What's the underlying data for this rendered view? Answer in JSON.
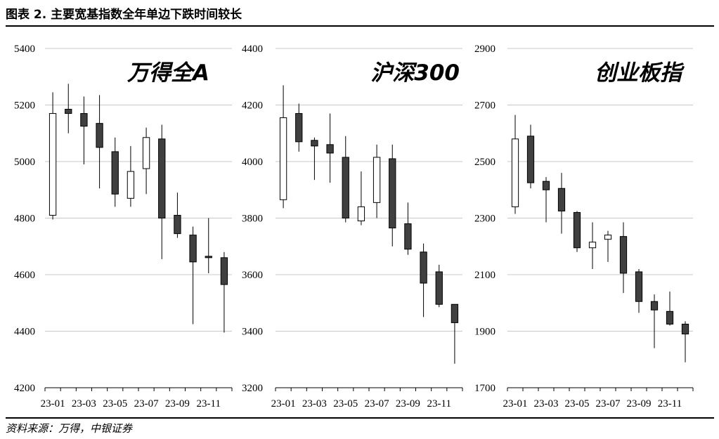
{
  "figure": {
    "title": "图表 2. 主要宽基指数全年单边下跌时间较长",
    "source": "资料来源：万得，中银证券"
  },
  "chart_data": [
    {
      "type": "candlestick",
      "title": "万得全A",
      "ylim": [
        4200,
        5400
      ],
      "yticks": [
        4200,
        4400,
        4600,
        4800,
        5000,
        5200,
        5400
      ],
      "xtick_labels": [
        "23-01",
        "23-03",
        "23-05",
        "23-07",
        "23-09",
        "23-11"
      ],
      "grid": true,
      "up_color": "#ffffff",
      "down_color": "#404040",
      "candles": [
        {
          "month": "23-01",
          "open": 4810,
          "high": 5245,
          "low": 4795,
          "close": 5170
        },
        {
          "month": "23-02",
          "open": 5185,
          "high": 5275,
          "low": 5100,
          "close": 5170
        },
        {
          "month": "23-03",
          "open": 5170,
          "high": 5230,
          "low": 4990,
          "close": 5125
        },
        {
          "month": "23-04",
          "open": 5135,
          "high": 5235,
          "low": 4905,
          "close": 5050
        },
        {
          "month": "23-05",
          "open": 5035,
          "high": 5085,
          "low": 4840,
          "close": 4885
        },
        {
          "month": "23-06",
          "open": 4870,
          "high": 5055,
          "low": 4840,
          "close": 4965
        },
        {
          "month": "23-07",
          "open": 4975,
          "high": 5120,
          "low": 4885,
          "close": 5085
        },
        {
          "month": "23-08",
          "open": 5080,
          "high": 5130,
          "low": 4655,
          "close": 4800
        },
        {
          "month": "23-09",
          "open": 4810,
          "high": 4890,
          "low": 4730,
          "close": 4745
        },
        {
          "month": "23-10",
          "open": 4740,
          "high": 4770,
          "low": 4425,
          "close": 4645
        },
        {
          "month": "23-11",
          "open": 4665,
          "high": 4800,
          "low": 4605,
          "close": 4660
        },
        {
          "month": "23-12",
          "open": 4660,
          "high": 4680,
          "low": 4395,
          "close": 4565
        }
      ]
    },
    {
      "type": "candlestick",
      "title": "沪深300",
      "ylim": [
        3200,
        4400
      ],
      "yticks": [
        3200,
        3400,
        3600,
        3800,
        4000,
        4200,
        4400
      ],
      "xtick_labels": [
        "23-01",
        "23-03",
        "23-05",
        "23-07",
        "23-09",
        "23-11"
      ],
      "grid": true,
      "up_color": "#ffffff",
      "down_color": "#404040",
      "candles": [
        {
          "month": "23-01",
          "open": 3865,
          "high": 4270,
          "low": 3835,
          "close": 4155
        },
        {
          "month": "23-02",
          "open": 4170,
          "high": 4205,
          "low": 4035,
          "close": 4070
        },
        {
          "month": "23-03",
          "open": 4075,
          "high": 4085,
          "low": 3935,
          "close": 4055
        },
        {
          "month": "23-04",
          "open": 4060,
          "high": 4170,
          "low": 3925,
          "close": 4030
        },
        {
          "month": "23-05",
          "open": 4015,
          "high": 4090,
          "low": 3785,
          "close": 3800
        },
        {
          "month": "23-06",
          "open": 3790,
          "high": 3965,
          "low": 3775,
          "close": 3840
        },
        {
          "month": "23-07",
          "open": 3855,
          "high": 4060,
          "low": 3800,
          "close": 4015
        },
        {
          "month": "23-08",
          "open": 4010,
          "high": 4060,
          "low": 3700,
          "close": 3765
        },
        {
          "month": "23-09",
          "open": 3780,
          "high": 3855,
          "low": 3670,
          "close": 3690
        },
        {
          "month": "23-10",
          "open": 3680,
          "high": 3710,
          "low": 3450,
          "close": 3570
        },
        {
          "month": "23-11",
          "open": 3610,
          "high": 3635,
          "low": 3485,
          "close": 3495
        },
        {
          "month": "23-12",
          "open": 3495,
          "high": 3495,
          "low": 3285,
          "close": 3430
        }
      ]
    },
    {
      "type": "candlestick",
      "title": "创业板指",
      "ylim": [
        1700,
        2900
      ],
      "yticks": [
        1700,
        1900,
        2100,
        2300,
        2500,
        2700,
        2900
      ],
      "xtick_labels": [
        "23-01",
        "23-03",
        "23-05",
        "23-07",
        "23-09",
        "23-11"
      ],
      "grid": true,
      "up_color": "#ffffff",
      "down_color": "#404040",
      "candles": [
        {
          "month": "23-01",
          "open": 2340,
          "high": 2665,
          "low": 2315,
          "close": 2580
        },
        {
          "month": "23-02",
          "open": 2590,
          "high": 2630,
          "low": 2405,
          "close": 2425
        },
        {
          "month": "23-03",
          "open": 2430,
          "high": 2445,
          "low": 2285,
          "close": 2400
        },
        {
          "month": "23-04",
          "open": 2405,
          "high": 2460,
          "low": 2245,
          "close": 2325
        },
        {
          "month": "23-05",
          "open": 2320,
          "high": 2325,
          "low": 2180,
          "close": 2195
        },
        {
          "month": "23-06",
          "open": 2195,
          "high": 2285,
          "low": 2120,
          "close": 2215
        },
        {
          "month": "23-07",
          "open": 2225,
          "high": 2255,
          "low": 2145,
          "close": 2240
        },
        {
          "month": "23-08",
          "open": 2235,
          "high": 2285,
          "low": 2035,
          "close": 2105
        },
        {
          "month": "23-09",
          "open": 2110,
          "high": 2120,
          "low": 1965,
          "close": 2005
        },
        {
          "month": "23-10",
          "open": 2005,
          "high": 2030,
          "low": 1840,
          "close": 1975
        },
        {
          "month": "23-11",
          "open": 1970,
          "high": 2040,
          "low": 1920,
          "close": 1925
        },
        {
          "month": "23-12",
          "open": 1925,
          "high": 1935,
          "low": 1790,
          "close": 1890
        }
      ]
    }
  ]
}
